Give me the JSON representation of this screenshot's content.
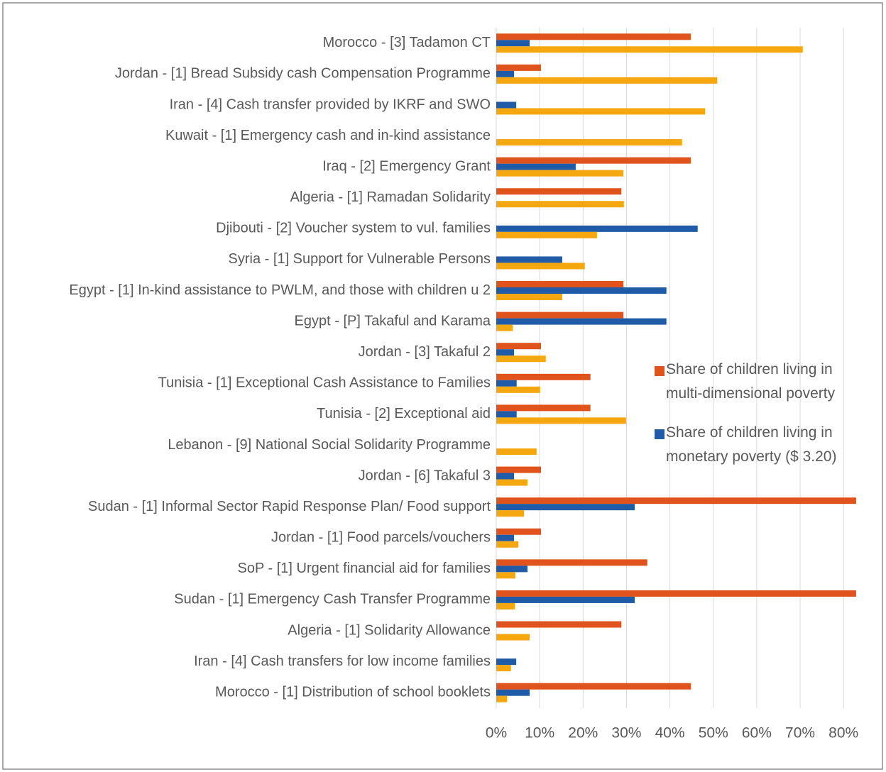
{
  "chart_data": {
    "type": "hbar",
    "categories": [
      "Morocco - [3] Tadamon CT",
      "Jordan - [1] Bread Subsidy cash Compensation Programme",
      "Iran - [4] Cash transfer provided by IKRF and SWO",
      "Kuwait - [1] Emergency cash and in-kind assistance",
      "Iraq - [2] Emergency Grant",
      "Algeria - [1] Ramadan Solidarity",
      "Djibouti - [2] Voucher system to vul. families",
      "Syria - [1] Support for Vulnerable Persons",
      "Egypt - [1] In-kind assistance to PWLM, and those with children u 2",
      "Egypt - [P] Takaful and Karama",
      "Jordan - [3] Takaful 2",
      "Tunisia - [1] Exceptional Cash Assistance to Families",
      "Tunisia - [2] Exceptional aid",
      "Lebanon - [9] National Social Solidarity Programme",
      "Jordan - [6] Takaful 3",
      "Sudan - [1] Informal Sector Rapid Response Plan/ Food support",
      "Jordan - [1] Food parcels/vouchers",
      "SoP - [1] Urgent financial aid for families",
      "Sudan - [1] Emergency  Cash Transfer Programme",
      "Algeria - [1] Solidarity Allowance",
      "Iran - [4] Cash transfers for low income families",
      "Morocco - [1] Distribution of school booklets"
    ],
    "series": [
      {
        "name": "Share of children living in multi-dimensional poverty",
        "color": "#e0531c",
        "values": [
          44.8,
          10.3,
          null,
          null,
          44.8,
          28.8,
          null,
          null,
          29.3,
          29.3,
          10.3,
          21.7,
          21.7,
          null,
          10.3,
          82.9,
          10.3,
          34.8,
          82.9,
          28.8,
          null,
          44.8
        ]
      },
      {
        "name": "Share of children living in monetary poverty ($ 3.20)",
        "color": "#1f5ba6",
        "values": [
          7.7,
          4.1,
          4.6,
          null,
          18.3,
          null,
          46.4,
          15.2,
          39.2,
          39.2,
          4.1,
          4.7,
          4.7,
          null,
          4.1,
          31.9,
          4.1,
          7.2,
          31.9,
          null,
          4.6,
          7.7
        ]
      },
      {
        "color": "#f5a70f",
        "values": [
          70.6,
          50.9,
          48.1,
          42.8,
          29.3,
          29.4,
          23.2,
          20.4,
          15.2,
          3.8,
          11.4,
          10.1,
          29.9,
          9.3,
          7.2,
          6.4,
          5.1,
          4.4,
          4.3,
          7.7,
          3.4,
          2.5
        ]
      }
    ],
    "xlim": [
      0,
      85
    ],
    "xticks": [
      {
        "value": 0,
        "label": "0%"
      },
      {
        "value": 10,
        "label": "10%"
      },
      {
        "value": 20,
        "label": "20%"
      },
      {
        "value": 30,
        "label": "30%"
      },
      {
        "value": 40,
        "label": "40%"
      },
      {
        "value": 50,
        "label": "50%"
      },
      {
        "value": 60,
        "label": "60%"
      },
      {
        "value": 70,
        "label": "70%"
      },
      {
        "value": 80,
        "label": "80%"
      }
    ],
    "grid": true,
    "legend": "right"
  }
}
